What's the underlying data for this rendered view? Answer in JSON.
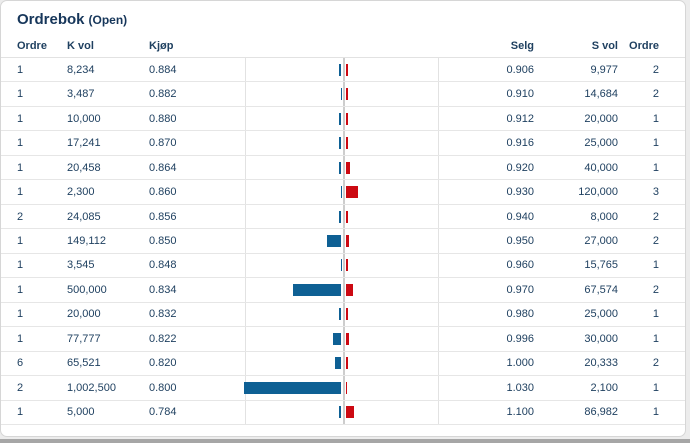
{
  "panel": {
    "title": "Ordrebok",
    "title_suffix": "(Open)"
  },
  "table": {
    "headers": {
      "buy_orders": "Ordre",
      "buy_volume": "K vol",
      "bid_price": "Kjøp",
      "ask_price": "Selg",
      "sell_volume": "S vol",
      "sell_orders": "Ordre"
    },
    "max_volume": 1002500,
    "rows": [
      {
        "buy_orders": "1",
        "buy_volume": "8,234",
        "buy_volume_value": 8234,
        "bid_price": "0.884",
        "ask_price": "0.906",
        "sell_volume": "9,977",
        "sell_volume_value": 9977,
        "sell_orders": "2"
      },
      {
        "buy_orders": "1",
        "buy_volume": "3,487",
        "buy_volume_value": 3487,
        "bid_price": "0.882",
        "ask_price": "0.910",
        "sell_volume": "14,684",
        "sell_volume_value": 14684,
        "sell_orders": "2"
      },
      {
        "buy_orders": "1",
        "buy_volume": "10,000",
        "buy_volume_value": 10000,
        "bid_price": "0.880",
        "ask_price": "0.912",
        "sell_volume": "20,000",
        "sell_volume_value": 20000,
        "sell_orders": "1"
      },
      {
        "buy_orders": "1",
        "buy_volume": "17,241",
        "buy_volume_value": 17241,
        "bid_price": "0.870",
        "ask_price": "0.916",
        "sell_volume": "25,000",
        "sell_volume_value": 25000,
        "sell_orders": "1"
      },
      {
        "buy_orders": "1",
        "buy_volume": "20,458",
        "buy_volume_value": 20458,
        "bid_price": "0.864",
        "ask_price": "0.920",
        "sell_volume": "40,000",
        "sell_volume_value": 40000,
        "sell_orders": "1"
      },
      {
        "buy_orders": "1",
        "buy_volume": "2,300",
        "buy_volume_value": 2300,
        "bid_price": "0.860",
        "ask_price": "0.930",
        "sell_volume": "120,000",
        "sell_volume_value": 120000,
        "sell_orders": "3"
      },
      {
        "buy_orders": "2",
        "buy_volume": "24,085",
        "buy_volume_value": 24085,
        "bid_price": "0.856",
        "ask_price": "0.940",
        "sell_volume": "8,000",
        "sell_volume_value": 8000,
        "sell_orders": "2"
      },
      {
        "buy_orders": "1",
        "buy_volume": "149,112",
        "buy_volume_value": 149112,
        "bid_price": "0.850",
        "ask_price": "0.950",
        "sell_volume": "27,000",
        "sell_volume_value": 27000,
        "sell_orders": "2"
      },
      {
        "buy_orders": "1",
        "buy_volume": "3,545",
        "buy_volume_value": 3545,
        "bid_price": "0.848",
        "ask_price": "0.960",
        "sell_volume": "15,765",
        "sell_volume_value": 15765,
        "sell_orders": "1"
      },
      {
        "buy_orders": "1",
        "buy_volume": "500,000",
        "buy_volume_value": 500000,
        "bid_price": "0.834",
        "ask_price": "0.970",
        "sell_volume": "67,574",
        "sell_volume_value": 67574,
        "sell_orders": "2"
      },
      {
        "buy_orders": "1",
        "buy_volume": "20,000",
        "buy_volume_value": 20000,
        "bid_price": "0.832",
        "ask_price": "0.980",
        "sell_volume": "25,000",
        "sell_volume_value": 25000,
        "sell_orders": "1"
      },
      {
        "buy_orders": "1",
        "buy_volume": "77,777",
        "buy_volume_value": 77777,
        "bid_price": "0.822",
        "ask_price": "0.996",
        "sell_volume": "30,000",
        "sell_volume_value": 30000,
        "sell_orders": "1"
      },
      {
        "buy_orders": "6",
        "buy_volume": "65,521",
        "buy_volume_value": 65521,
        "bid_price": "0.820",
        "ask_price": "1.000",
        "sell_volume": "20,333",
        "sell_volume_value": 20333,
        "sell_orders": "2"
      },
      {
        "buy_orders": "2",
        "buy_volume": "1,002,500",
        "buy_volume_value": 1002500,
        "bid_price": "0.800",
        "ask_price": "1.030",
        "sell_volume": "2,100",
        "sell_volume_value": 2100,
        "sell_orders": "1"
      },
      {
        "buy_orders": "1",
        "buy_volume": "5,000",
        "buy_volume_value": 5000,
        "bid_price": "0.784",
        "ask_price": "1.100",
        "sell_volume": "86,982",
        "sell_volume_value": 86982,
        "sell_orders": "1"
      }
    ]
  },
  "colors": {
    "buy_bar": "#0e6094",
    "sell_bar": "#cc0912",
    "text": "#1f4060",
    "center_line": "#cdcdcd"
  }
}
